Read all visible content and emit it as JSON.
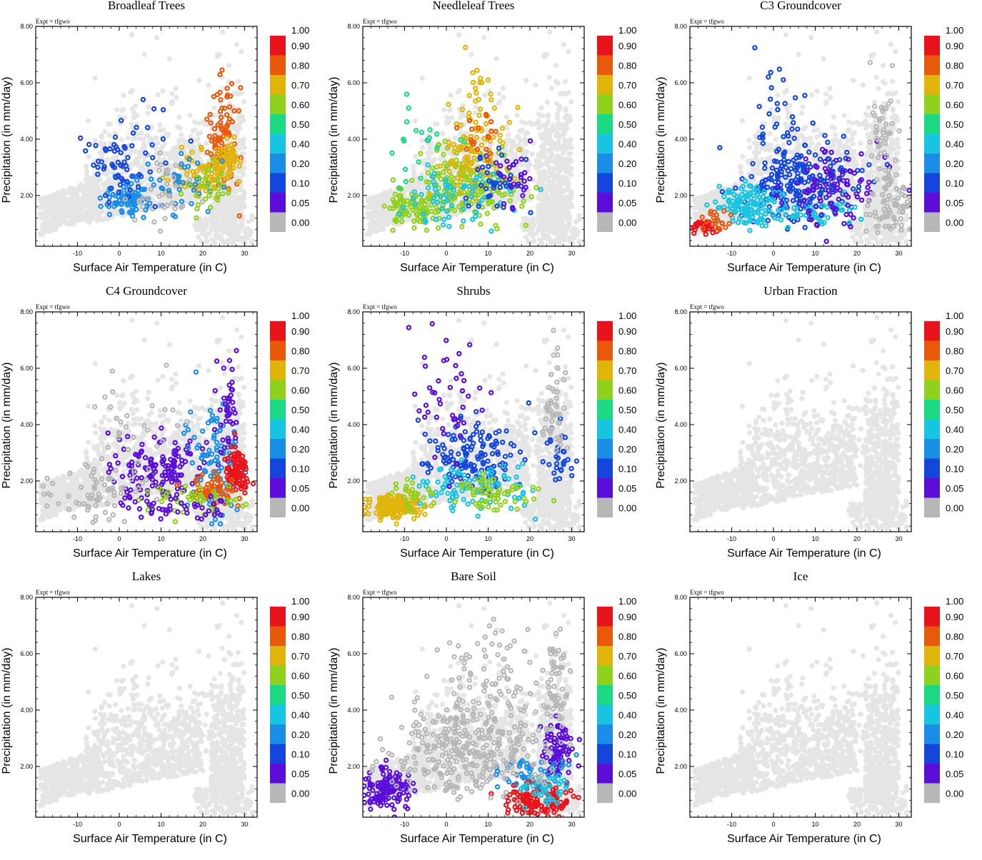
{
  "chart_data": {
    "type": "scatter",
    "experiment_label": "Expt = tfgwo",
    "xlabel": "Surface Air Temperature (in C)",
    "ylabel": "Precipitation (in mm/day)",
    "xlim": [
      -20,
      33
    ],
    "ylim": [
      0.2,
      8.0
    ],
    "x_ticks": [
      -10,
      0,
      10,
      20,
      30
    ],
    "x_tick_labels": [
      "-10",
      "0",
      "10",
      "20",
      "30"
    ],
    "y_ticks": [
      2.0,
      4.0,
      6.0,
      8.0
    ],
    "y_tick_labels": [
      "2.00",
      "4.00",
      "6.00",
      "8.00"
    ],
    "colorbar": {
      "labels": [
        "1.00",
        "0.90",
        "0.80",
        "0.70",
        "0.60",
        "0.50",
        "0.40",
        "0.20",
        "0.10",
        "0.05",
        "0.00"
      ],
      "colors": [
        "#e8141c",
        "#e8590c",
        "#e0b40a",
        "#8fd11c",
        "#1ed983",
        "#19c4e0",
        "#1a8ee6",
        "#1446dc",
        "#5a0ed8",
        "#b7b7b7"
      ]
    },
    "panels": [
      {
        "title": "Broadleaf Trees",
        "clusters": [
          {
            "cx": 2,
            "cy": 1.9,
            "sx": 3,
            "sy": 0.35,
            "n": 90,
            "c": 6
          },
          {
            "cx": -1,
            "cy": 3.0,
            "sx": 3,
            "sy": 0.6,
            "n": 40,
            "c": 7
          },
          {
            "cx": 25,
            "cy": 4.2,
            "sx": 2,
            "sy": 0.9,
            "n": 90,
            "c": 1
          },
          {
            "cx": 20,
            "cy": 2.8,
            "sx": 4,
            "sy": 0.5,
            "n": 80,
            "c": 2
          },
          {
            "cx": 26,
            "cy": 3.3,
            "sx": 1.5,
            "sy": 0.3,
            "n": 60,
            "c": 2
          },
          {
            "cx": 15,
            "cy": 2.4,
            "sx": 4,
            "sy": 0.6,
            "n": 40,
            "c": 6
          },
          {
            "cx": 22,
            "cy": 2.3,
            "sx": 3,
            "sy": 0.5,
            "n": 30,
            "c": 3
          },
          {
            "cx": 10,
            "cy": 2.0,
            "sx": 4,
            "sy": 0.8,
            "n": 40,
            "c": 9
          },
          {
            "cx": 5,
            "cy": 3.6,
            "sx": 4,
            "sy": 1.0,
            "n": 25,
            "c": 7
          }
        ]
      },
      {
        "title": "Needleleaf Trees",
        "clusters": [
          {
            "cx": -7,
            "cy": 1.5,
            "sx": 4,
            "sy": 0.3,
            "n": 100,
            "c": 3
          },
          {
            "cx": 5,
            "cy": 2.4,
            "sx": 6,
            "sy": 0.6,
            "n": 180,
            "c": 3
          },
          {
            "cx": 6,
            "cy": 3.2,
            "sx": 4,
            "sy": 0.7,
            "n": 90,
            "c": 2
          },
          {
            "cx": 7,
            "cy": 4.8,
            "sx": 3,
            "sy": 1.0,
            "n": 35,
            "c": 2
          },
          {
            "cx": 3,
            "cy": 2.0,
            "sx": 7,
            "sy": 0.6,
            "n": 70,
            "c": 5
          },
          {
            "cx": 12,
            "cy": 2.6,
            "sx": 4,
            "sy": 0.6,
            "n": 40,
            "c": 7
          },
          {
            "cx": -3,
            "cy": 3.8,
            "sx": 5,
            "sy": 0.6,
            "n": 20,
            "c": 4
          },
          {
            "cx": 8,
            "cy": 4.2,
            "sx": 3,
            "sy": 0.6,
            "n": 20,
            "c": 1
          },
          {
            "cx": 16,
            "cy": 2.7,
            "sx": 3,
            "sy": 0.6,
            "n": 25,
            "c": 8
          }
        ]
      },
      {
        "title": "C3 Groundcover",
        "clusters": [
          {
            "cx": 6,
            "cy": 2.4,
            "sx": 7,
            "sy": 0.7,
            "n": 220,
            "c": 7
          },
          {
            "cx": -6,
            "cy": 1.6,
            "sx": 4,
            "sy": 0.4,
            "n": 120,
            "c": 5
          },
          {
            "cx": 8,
            "cy": 1.4,
            "sx": 6,
            "sy": 0.3,
            "n": 60,
            "c": 5
          },
          {
            "cx": -17,
            "cy": 0.9,
            "sx": 1.5,
            "sy": 0.12,
            "n": 30,
            "c": 0
          },
          {
            "cx": 15,
            "cy": 2.4,
            "sx": 5,
            "sy": 0.8,
            "n": 90,
            "c": 8
          },
          {
            "cx": 3,
            "cy": 4.5,
            "sx": 4,
            "sy": 1.2,
            "n": 40,
            "c": 7
          },
          {
            "cx": 26,
            "cy": 4.2,
            "sx": 1.5,
            "sy": 1.2,
            "n": 50,
            "c": 9
          },
          {
            "cx": 28,
            "cy": 1.6,
            "sx": 3,
            "sy": 0.6,
            "n": 70,
            "c": 9
          },
          {
            "cx": -14,
            "cy": 1.1,
            "sx": 2,
            "sy": 0.25,
            "n": 20,
            "c": 1
          }
        ]
      },
      {
        "title": "C4 Groundcover",
        "clusters": [
          {
            "cx": 10,
            "cy": 2.3,
            "sx": 6,
            "sy": 0.6,
            "n": 150,
            "c": 8
          },
          {
            "cx": 23,
            "cy": 2.8,
            "sx": 3,
            "sy": 1.2,
            "n": 90,
            "c": 6
          },
          {
            "cx": 28,
            "cy": 2.3,
            "sx": 1.2,
            "sy": 0.4,
            "n": 90,
            "c": 0
          },
          {
            "cx": 22,
            "cy": 1.7,
            "sx": 3,
            "sy": 0.3,
            "n": 60,
            "c": 1
          },
          {
            "cx": 18,
            "cy": 1.3,
            "sx": 6,
            "sy": 0.3,
            "n": 50,
            "c": 3
          },
          {
            "cx": 26,
            "cy": 4.8,
            "sx": 1.2,
            "sy": 1.0,
            "n": 40,
            "c": 8
          },
          {
            "cx": -5,
            "cy": 1.5,
            "sx": 6,
            "sy": 0.6,
            "n": 70,
            "c": 9
          },
          {
            "cx": 5,
            "cy": 4.0,
            "sx": 5,
            "sy": 1.0,
            "n": 30,
            "c": 9
          },
          {
            "cx": 16,
            "cy": 1.0,
            "sx": 7,
            "sy": 0.2,
            "n": 40,
            "c": 8
          }
        ]
      },
      {
        "title": "Shrubs",
        "clusters": [
          {
            "cx": -12,
            "cy": 1.1,
            "sx": 3.5,
            "sy": 0.2,
            "n": 180,
            "c": 2
          },
          {
            "cx": 6,
            "cy": 2.9,
            "sx": 6,
            "sy": 0.6,
            "n": 140,
            "c": 7
          },
          {
            "cx": 7,
            "cy": 1.8,
            "sx": 7,
            "sy": 0.4,
            "n": 90,
            "c": 5
          },
          {
            "cx": 2,
            "cy": 4.8,
            "sx": 4,
            "sy": 1.3,
            "n": 45,
            "c": 8
          },
          {
            "cx": 12,
            "cy": 1.5,
            "sx": 5,
            "sy": 0.3,
            "n": 60,
            "c": 3
          },
          {
            "cx": 27,
            "cy": 3.0,
            "sx": 2,
            "sy": 0.5,
            "n": 30,
            "c": 7
          },
          {
            "cx": 26,
            "cy": 4.8,
            "sx": 1.5,
            "sy": 1.0,
            "n": 50,
            "c": 9
          },
          {
            "cx": -8,
            "cy": 1.6,
            "sx": 3,
            "sy": 0.3,
            "n": 25,
            "c": 3
          }
        ]
      },
      {
        "title": "Urban Fraction",
        "clusters": []
      },
      {
        "title": "Lakes",
        "clusters": []
      },
      {
        "title": "Bare Soil",
        "clusters": [
          {
            "cx": -14,
            "cy": 1.2,
            "sx": 3,
            "sy": 0.35,
            "n": 130,
            "c": 8
          },
          {
            "cx": 27,
            "cy": 2.6,
            "sx": 2,
            "sy": 0.5,
            "n": 80,
            "c": 8
          },
          {
            "cx": 22,
            "cy": 0.8,
            "sx": 4,
            "sy": 0.35,
            "n": 130,
            "c": 0
          },
          {
            "cx": 20,
            "cy": 1.8,
            "sx": 5,
            "sy": 0.3,
            "n": 50,
            "c": 6
          },
          {
            "cx": 24,
            "cy": 1.2,
            "sx": 3,
            "sy": 0.3,
            "n": 40,
            "c": 5
          },
          {
            "cx": 5,
            "cy": 2.6,
            "sx": 9,
            "sy": 0.8,
            "n": 320,
            "c": 9
          },
          {
            "cx": 10,
            "cy": 5.0,
            "sx": 6,
            "sy": 1.2,
            "n": 90,
            "c": 9
          },
          {
            "cx": 26,
            "cy": 4.8,
            "sx": 1.5,
            "sy": 1.0,
            "n": 60,
            "c": 9
          }
        ]
      },
      {
        "title": "Ice",
        "clusters": []
      }
    ],
    "background_points": {
      "color": "#e5e5e5",
      "count": 1700
    }
  }
}
